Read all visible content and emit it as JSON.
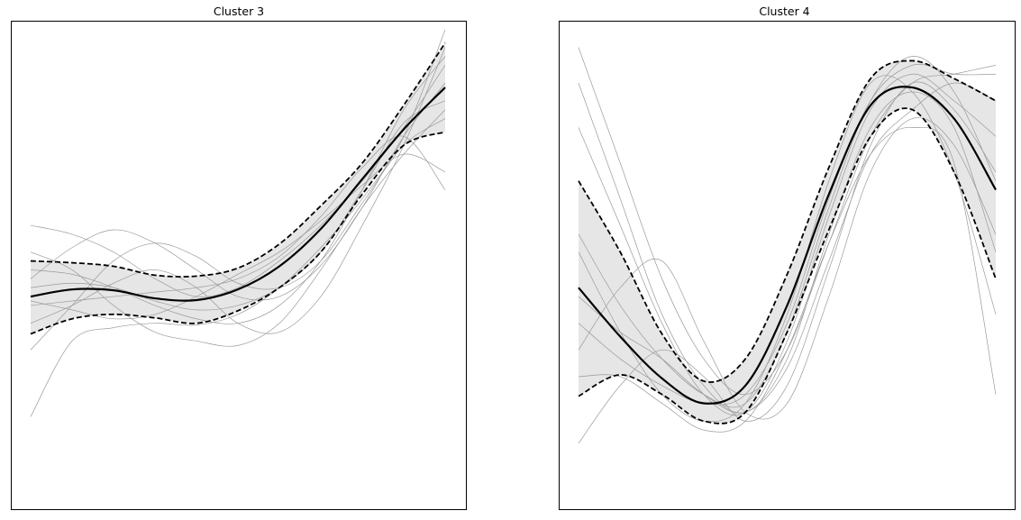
{
  "chart_data": [
    {
      "type": "line",
      "title": "Cluster 3",
      "xlabel": "",
      "ylabel": "",
      "grid": false,
      "xlim": [
        0,
        1
      ],
      "ylim": [
        -2.6,
        2.9
      ],
      "x_ticks": [],
      "y_ticks": [],
      "colors": {
        "individual": "#9a9a9a",
        "band": "#e6e6e6",
        "mean": "#000000",
        "bounds": "#000000"
      },
      "mean": {
        "x": [
          0,
          0.1,
          0.2,
          0.3,
          0.4,
          0.5,
          0.6,
          0.7,
          0.8,
          0.9,
          1.0
        ],
        "y": [
          -0.2,
          -0.12,
          -0.13,
          -0.22,
          -0.24,
          -0.12,
          0.14,
          0.56,
          1.12,
          1.68,
          2.15
        ]
      },
      "upper_bound": {
        "x": [
          0,
          0.1,
          0.2,
          0.3,
          0.4,
          0.5,
          0.6,
          0.7,
          0.8,
          0.9,
          1.0
        ],
        "y": [
          0.2,
          0.18,
          0.14,
          0.04,
          0.03,
          0.12,
          0.39,
          0.82,
          1.3,
          1.95,
          2.65
        ]
      },
      "lower_bound": {
        "x": [
          0,
          0.1,
          0.2,
          0.3,
          0.4,
          0.5,
          0.6,
          0.7,
          0.8,
          0.9,
          1.0
        ],
        "y": [
          -0.62,
          -0.45,
          -0.4,
          -0.44,
          -0.5,
          -0.36,
          -0.1,
          0.3,
          0.95,
          1.5,
          1.65
        ]
      },
      "individual_series": [
        {
          "x": [
            0,
            0.1,
            0.2,
            0.3,
            0.4,
            0.5,
            0.6,
            0.7,
            0.8,
            0.9,
            1.0
          ],
          "y": [
            -1.55,
            -0.7,
            -0.55,
            -0.5,
            -0.52,
            -0.4,
            -0.1,
            0.35,
            0.9,
            1.6,
            2.8
          ]
        },
        {
          "x": [
            0,
            0.1,
            0.2,
            0.3,
            0.4,
            0.5,
            0.6,
            0.7,
            0.8,
            0.9,
            1.0
          ],
          "y": [
            0.6,
            0.5,
            0.3,
            0.0,
            -0.2,
            -0.1,
            0.2,
            0.6,
            1.1,
            1.7,
            2.4
          ]
        },
        {
          "x": [
            0,
            0.1,
            0.2,
            0.3,
            0.4,
            0.5,
            0.6,
            0.7,
            0.8,
            0.9,
            1.0
          ],
          "y": [
            -0.8,
            -0.3,
            0.2,
            0.4,
            0.25,
            -0.05,
            -0.1,
            0.2,
            0.85,
            1.5,
            1.8
          ]
        },
        {
          "x": [
            0,
            0.1,
            0.2,
            0.3,
            0.4,
            0.5,
            0.6,
            0.7,
            0.8,
            0.9,
            1.0
          ],
          "y": [
            0.3,
            0.1,
            -0.3,
            -0.6,
            -0.7,
            -0.75,
            -0.5,
            0.1,
            0.8,
            1.4,
            1.9
          ]
        },
        {
          "x": [
            0,
            0.1,
            0.2,
            0.3,
            0.4,
            0.5,
            0.6,
            0.7,
            0.8,
            0.9,
            1.0
          ],
          "y": [
            -0.3,
            -0.25,
            -0.2,
            -0.15,
            -0.1,
            0.0,
            0.25,
            0.7,
            1.25,
            1.6,
            1.0
          ]
        },
        {
          "x": [
            0,
            0.1,
            0.2,
            0.3,
            0.4,
            0.5,
            0.6,
            0.7,
            0.8,
            0.9,
            1.0
          ],
          "y": [
            -0.1,
            -0.05,
            -0.1,
            -0.25,
            -0.35,
            -0.3,
            -0.1,
            0.3,
            1.0,
            1.75,
            2.0
          ]
        },
        {
          "x": [
            0,
            0.1,
            0.2,
            0.3,
            0.4,
            0.5,
            0.6,
            0.7,
            0.8,
            0.9,
            1.0
          ],
          "y": [
            -0.5,
            -0.3,
            -0.05,
            0.1,
            -0.1,
            -0.5,
            -0.6,
            -0.2,
            0.6,
            1.5,
            2.6
          ]
        },
        {
          "x": [
            0,
            0.1,
            0.2,
            0.3,
            0.4,
            0.5,
            0.6,
            0.7,
            0.8,
            0.9,
            1.0
          ],
          "y": [
            0.0,
            0.35,
            0.55,
            0.4,
            0.1,
            -0.2,
            -0.2,
            0.15,
            0.8,
            1.6,
            2.2
          ]
        },
        {
          "x": [
            0,
            0.1,
            0.2,
            0.3,
            0.4,
            0.5,
            0.6,
            0.7,
            0.8,
            0.9,
            1.0
          ],
          "y": [
            -0.25,
            -0.35,
            -0.45,
            -0.4,
            -0.2,
            0.05,
            0.3,
            0.65,
            1.05,
            1.4,
            1.2
          ]
        },
        {
          "x": [
            0,
            0.1,
            0.2,
            0.3,
            0.4,
            0.5,
            0.6,
            0.7,
            0.8,
            0.9,
            1.0
          ],
          "y": [
            0.1,
            0.05,
            -0.1,
            -0.3,
            -0.45,
            -0.5,
            -0.3,
            0.2,
            1.0,
            1.9,
            2.5
          ]
        }
      ]
    },
    {
      "type": "line",
      "title": "Cluster 4",
      "xlabel": "",
      "ylabel": "",
      "grid": false,
      "xlim": [
        0,
        1
      ],
      "ylim": [
        -2.6,
        2.9
      ],
      "x_ticks": [],
      "y_ticks": [],
      "colors": {
        "individual": "#9a9a9a",
        "band": "#e6e6e6",
        "mean": "#000000",
        "bounds": "#000000"
      },
      "mean": {
        "x": [
          0,
          0.1,
          0.2,
          0.3,
          0.4,
          0.5,
          0.6,
          0.7,
          0.8,
          0.9,
          1.0
        ],
        "y": [
          -0.1,
          -0.65,
          -1.12,
          -1.4,
          -1.2,
          -0.3,
          0.95,
          1.95,
          2.15,
          1.8,
          1.0
        ]
      },
      "upper_bound": {
        "x": [
          0,
          0.1,
          0.2,
          0.3,
          0.4,
          0.5,
          0.6,
          0.7,
          0.8,
          0.9,
          1.0
        ],
        "y": [
          1.1,
          0.3,
          -0.62,
          -1.15,
          -0.9,
          0.05,
          1.25,
          2.25,
          2.45,
          2.25,
          2.0
        ]
      },
      "lower_bound": {
        "x": [
          0,
          0.1,
          0.2,
          0.3,
          0.4,
          0.5,
          0.6,
          0.7,
          0.8,
          0.9,
          1.0
        ],
        "y": [
          -1.32,
          -1.08,
          -1.3,
          -1.6,
          -1.5,
          -0.6,
          0.55,
          1.6,
          1.9,
          1.2,
          0.0
        ]
      },
      "individual_series": [
        {
          "x": [
            0,
            0.1,
            0.2,
            0.3,
            0.4,
            0.5,
            0.6,
            0.7,
            0.8,
            0.9,
            1.0
          ],
          "y": [
            2.6,
            1.3,
            0.0,
            -0.9,
            -1.3,
            -0.8,
            0.4,
            1.6,
            2.2,
            2.3,
            2.4
          ]
        },
        {
          "x": [
            0,
            0.1,
            0.2,
            0.3,
            0.4,
            0.5,
            0.6,
            0.7,
            0.8,
            0.9,
            1.0
          ],
          "y": [
            2.2,
            0.9,
            -0.4,
            -1.2,
            -1.5,
            -0.9,
            0.5,
            1.7,
            2.1,
            1.7,
            0.3
          ]
        },
        {
          "x": [
            0,
            0.1,
            0.2,
            0.3,
            0.4,
            0.5,
            0.6,
            0.7,
            0.8,
            0.9,
            1.0
          ],
          "y": [
            -1.85,
            -1.2,
            -0.8,
            -1.1,
            -1.6,
            -1.2,
            0.1,
            1.5,
            2.2,
            1.9,
            1.2
          ]
        },
        {
          "x": [
            0,
            0.1,
            0.2,
            0.3,
            0.4,
            0.5,
            0.6,
            0.7,
            0.8,
            0.9,
            1.0
          ],
          "y": [
            0.5,
            -0.3,
            -0.9,
            -1.3,
            -1.4,
            -0.6,
            0.8,
            2.0,
            2.5,
            2.1,
            1.1
          ]
        },
        {
          "x": [
            0,
            0.1,
            0.2,
            0.3,
            0.4,
            0.5,
            0.6,
            0.7,
            0.8,
            0.9,
            1.0
          ],
          "y": [
            -0.8,
            -0.1,
            0.2,
            -0.7,
            -1.5,
            -1.4,
            -0.2,
            1.2,
            1.8,
            1.5,
            0.5
          ]
        },
        {
          "x": [
            0,
            0.1,
            0.2,
            0.3,
            0.4,
            0.5,
            0.6,
            0.7,
            0.8,
            0.9,
            1.0
          ],
          "y": [
            -0.5,
            -0.9,
            -1.2,
            -1.4,
            -1.3,
            -0.5,
            0.9,
            2.0,
            2.4,
            2.3,
            2.3
          ]
        },
        {
          "x": [
            0,
            0.1,
            0.2,
            0.3,
            0.4,
            0.5,
            0.6,
            0.7,
            0.8,
            0.9,
            1.0
          ],
          "y": [
            -1.1,
            -1.1,
            -1.4,
            -1.7,
            -1.6,
            -0.8,
            0.4,
            1.4,
            1.7,
            1.3,
            -1.3
          ]
        },
        {
          "x": [
            0,
            0.1,
            0.2,
            0.3,
            0.4,
            0.5,
            0.6,
            0.7,
            0.8,
            0.9,
            1.0
          ],
          "y": [
            0.3,
            -0.6,
            -1.3,
            -1.6,
            -1.4,
            -0.4,
            1.1,
            2.2,
            2.1,
            1.2,
            -0.4
          ]
        },
        {
          "x": [
            0,
            0.1,
            0.2,
            0.3,
            0.4,
            0.5,
            0.6,
            0.7,
            0.8,
            0.9,
            1.0
          ],
          "y": [
            -0.2,
            -0.6,
            -0.9,
            -1.3,
            -1.5,
            -1.0,
            0.2,
            1.4,
            1.9,
            2.2,
            2.0
          ]
        },
        {
          "x": [
            0,
            0.1,
            0.2,
            0.3,
            0.4,
            0.5,
            0.6,
            0.7,
            0.8,
            0.9,
            1.0
          ],
          "y": [
            1.7,
            0.6,
            -0.5,
            -1.3,
            -1.5,
            -0.7,
            0.7,
            1.9,
            2.3,
            2.0,
            1.6
          ]
        }
      ]
    }
  ]
}
